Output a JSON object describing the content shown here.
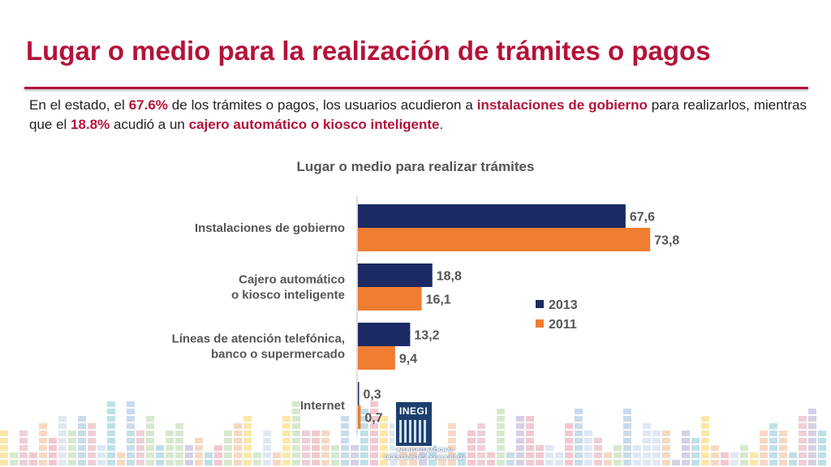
{
  "slide": {
    "title": "Lugar o medio para la realización de trámites o pagos",
    "intro": {
      "p1": "En el estado, el ",
      "v1": "67.6%",
      "p2": " de los trámites o pagos, los usuarios acudieron a ",
      "h1": "instalaciones de gobierno",
      "p3": " para realizarlos, mientras que el ",
      "v2": "18.8%",
      "p4": " acudió a un ",
      "h2": "cajero automático o kiosco inteligente",
      "p5": "."
    }
  },
  "chart_data": {
    "type": "bar",
    "orientation": "horizontal",
    "title": "Lugar o medio para realizar trámites",
    "categories": [
      [
        "Instalaciones de gobierno"
      ],
      [
        "Cajero automático",
        "o kiosco inteligente"
      ],
      [
        "Líneas de atención telefónica,",
        "banco o supermercado"
      ],
      [
        "Internet"
      ]
    ],
    "series": [
      {
        "name": "2013",
        "color": "#1b2a63",
        "values": [
          67.6,
          18.8,
          13.2,
          0.3
        ],
        "labels": [
          "67,6",
          "18,8",
          "13,2",
          "0,3"
        ]
      },
      {
        "name": "2011",
        "color": "#ee7d31",
        "values": [
          73.8,
          16.1,
          9.4,
          0.7
        ],
        "labels": [
          "73,8",
          "16,1",
          "9,4",
          "0,7"
        ]
      }
    ],
    "xlim": [
      0,
      80
    ],
    "grid": false,
    "legend": "center-right",
    "value_label_color": "#555555",
    "category_label_color": "#555555"
  },
  "logo": {
    "name": "INEGI",
    "line1": "INSTITUTO NACIONAL",
    "line2": "DE ESTADÍSTICA Y GEOGRAFÍA"
  },
  "decor": {
    "palette": [
      "#dfe8f3",
      "#c9dcea",
      "#d7e9cf",
      "#f6d9c4",
      "#eed0d6",
      "#fbe7a9",
      "#d6d0e6",
      "#f3c8cf",
      "#bfe0e8"
    ]
  }
}
